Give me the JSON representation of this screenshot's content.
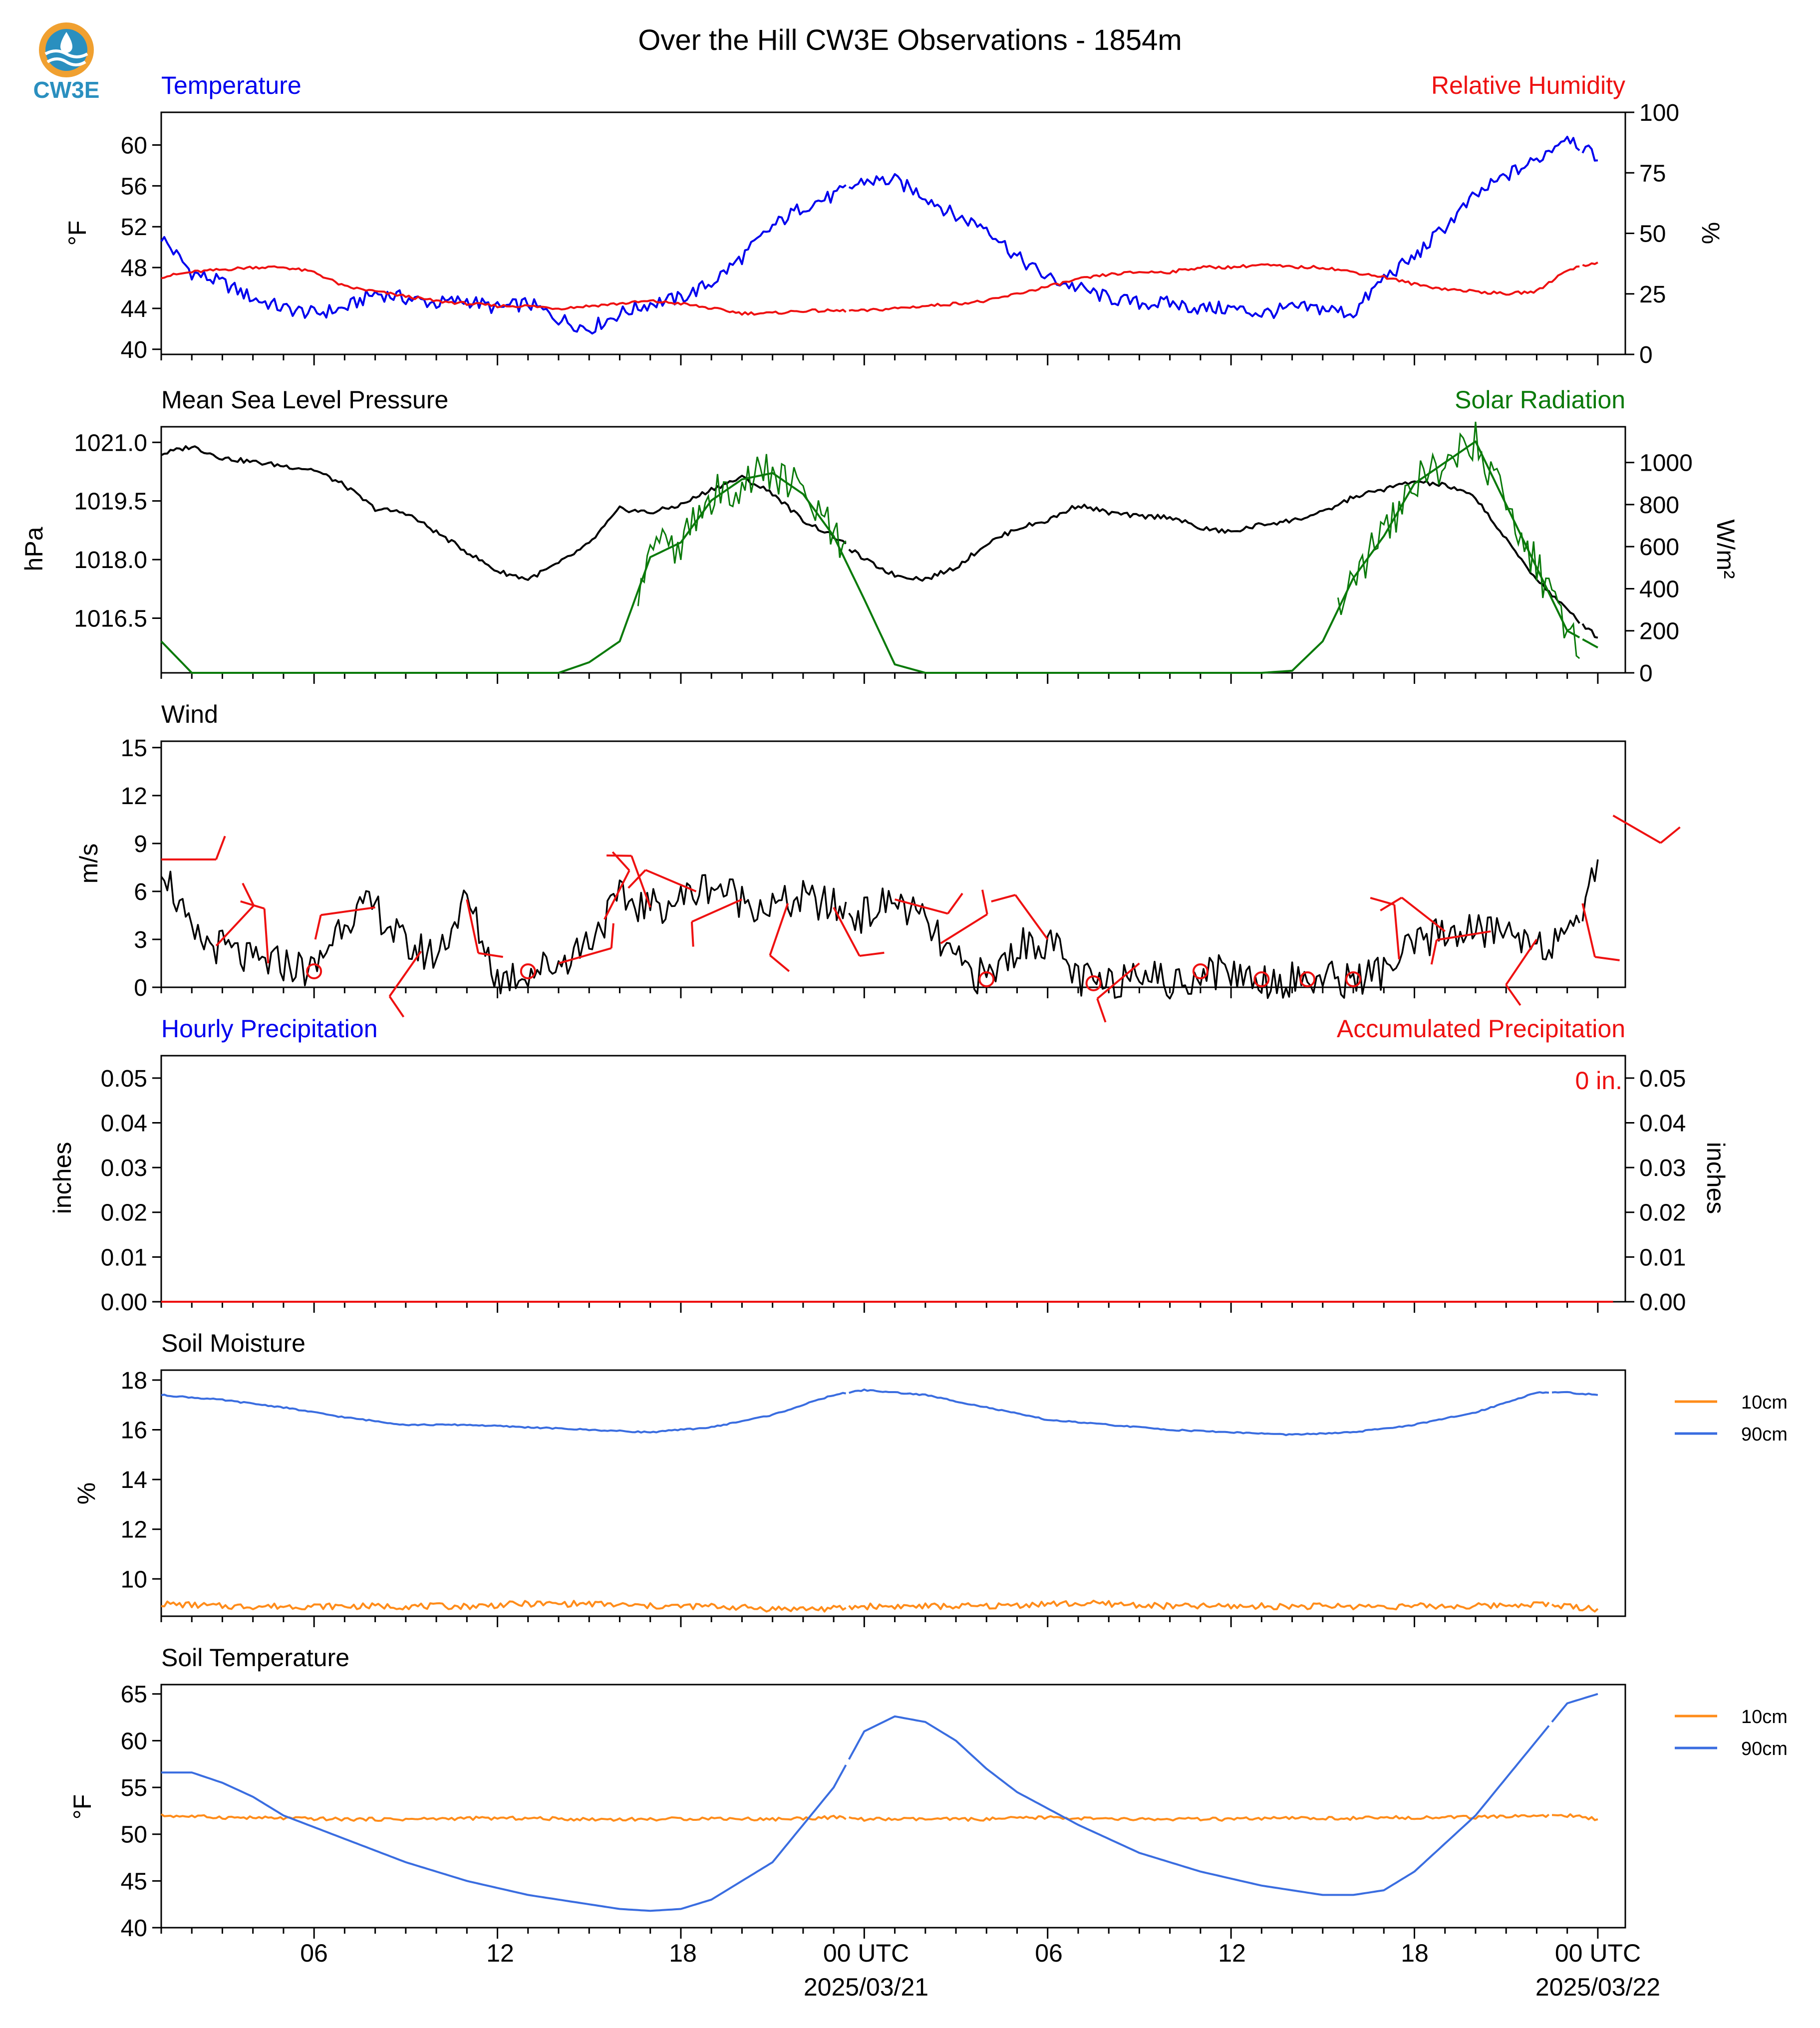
{
  "title": "Over the Hill CW3E Observations - 1854m",
  "logo": {
    "text": "CW3E"
  },
  "colors": {
    "blue": "#0000ee",
    "red": "#ee1111",
    "green": "#0a7a0a",
    "black": "#000000",
    "orange": "#ff8c1a",
    "royal": "#3a6de0",
    "logo_orange": "#f0a030",
    "logo_blue": "#2a8fbf"
  },
  "time_axis": {
    "major_ticks": [
      "06",
      "12",
      "18",
      "00 UTC",
      "06",
      "12",
      "18",
      "00 UTC"
    ],
    "dates": [
      "2025/03/21",
      "2025/03/22"
    ]
  },
  "panels": {
    "temperature": {
      "title_left": "Temperature",
      "title_right": "Relative Humidity",
      "ylabel_left": "°F",
      "ylabel_right": "%",
      "left_ticks": [
        "40",
        "44",
        "48",
        "52",
        "56",
        "60"
      ],
      "right_ticks": [
        "0",
        "25",
        "50",
        "75",
        "100"
      ]
    },
    "pressure": {
      "title_left": "Mean Sea Level Pressure",
      "title_right": "Solar Radiation",
      "ylabel_left": "hPa",
      "ylabel_right": "W/m²",
      "left_ticks": [
        "1016.5",
        "1018.0",
        "1019.5",
        "1021.0"
      ],
      "right_ticks": [
        "0",
        "200",
        "400",
        "600",
        "800",
        "1000"
      ]
    },
    "wind": {
      "title_left": "Wind",
      "ylabel_left": "m/s",
      "left_ticks": [
        "0",
        "3",
        "6",
        "9",
        "12",
        "15"
      ]
    },
    "precip": {
      "title_left": "Hourly Precipitation",
      "title_right": "Accumulated Precipitation",
      "ylabel_left": "inches",
      "ylabel_right": "inches",
      "left_ticks": [
        "0.00",
        "0.01",
        "0.02",
        "0.03",
        "0.04",
        "0.05"
      ],
      "right_ticks": [
        "0.00",
        "0.01",
        "0.02",
        "0.03",
        "0.04",
        "0.05"
      ],
      "total_label": "0 in."
    },
    "soil_moisture": {
      "title_left": "Soil Moisture",
      "ylabel_left": "%",
      "left_ticks": [
        "10",
        "12",
        "14",
        "16",
        "18"
      ],
      "legend": [
        "10cm",
        "90cm"
      ]
    },
    "soil_temperature": {
      "title_left": "Soil Temperature",
      "ylabel_left": "°F",
      "left_ticks": [
        "40",
        "45",
        "50",
        "55",
        "60",
        "65"
      ],
      "legend": [
        "10cm",
        "90cm"
      ]
    }
  },
  "chart_data": [
    {
      "type": "line",
      "name": "temperature",
      "title": "Temperature",
      "ylabel": "°F",
      "ylim": [
        39.5,
        63.2
      ],
      "x_unit": "hours from 2025-03-20 01:00 UTC",
      "series": [
        {
          "name": "Temperature",
          "color": "blue",
          "x": [
            0,
            1,
            2,
            3,
            4,
            5,
            6,
            7,
            8,
            9,
            10,
            11,
            12,
            13,
            14,
            15,
            16,
            17,
            18,
            19,
            20,
            21,
            22,
            23,
            24,
            25,
            26,
            27,
            28,
            29,
            30,
            31,
            32,
            33,
            34,
            35,
            36,
            37,
            38,
            39,
            40,
            41,
            42,
            43,
            44,
            45,
            46,
            47
          ],
          "y": [
            51,
            47.5,
            46.5,
            45,
            44,
            43.5,
            44,
            45.5,
            45,
            44.5,
            44.8,
            44,
            44.5,
            43,
            42,
            43.5,
            44.5,
            45,
            46.5,
            49,
            52,
            54,
            55,
            56.5,
            56.5,
            55,
            53,
            52,
            49,
            47,
            46,
            45,
            44.5,
            44.5,
            44,
            44,
            43.5,
            44,
            44,
            43.5,
            47,
            49,
            52,
            55,
            57,
            58.5,
            61,
            58.5
          ],
          "gaps_after": [
            22,
            46
          ]
        }
      ]
    },
    {
      "type": "line",
      "name": "relative_humidity",
      "title": "Relative Humidity",
      "ylabel": "%",
      "ylim": [
        0,
        100
      ],
      "series": [
        {
          "name": "Relative Humidity",
          "color": "red",
          "x": [
            0,
            1,
            2,
            3,
            4,
            5,
            6,
            7,
            8,
            9,
            10,
            11,
            12,
            13,
            14,
            15,
            16,
            17,
            18,
            19,
            20,
            21,
            22,
            23,
            24,
            25,
            26,
            27,
            28,
            29,
            30,
            31,
            32,
            33,
            34,
            35,
            36,
            37,
            38,
            39,
            40,
            41,
            42,
            43,
            44,
            45,
            46,
            47
          ],
          "y": [
            32,
            34,
            35,
            36,
            36,
            34,
            28,
            26,
            24,
            22,
            21,
            20,
            20,
            19,
            20,
            21,
            22,
            21,
            19,
            17,
            17,
            18,
            18,
            18,
            19,
            20,
            21,
            22,
            25,
            28,
            31,
            33,
            34,
            34,
            36,
            36,
            37,
            36,
            36,
            34,
            32,
            29,
            27,
            26,
            25,
            26,
            35,
            38
          ],
          "gaps_after": [
            22,
            46
          ]
        }
      ]
    },
    {
      "type": "line",
      "name": "pressure",
      "title": "Mean Sea Level Pressure",
      "ylabel": "hPa",
      "ylim": [
        1015.1,
        1021.4
      ],
      "series": [
        {
          "name": "Mean Sea Level Pressure",
          "color": "black",
          "x": [
            0,
            1,
            2,
            3,
            4,
            5,
            6,
            7,
            8,
            9,
            10,
            11,
            12,
            13,
            14,
            15,
            16,
            17,
            18,
            19,
            20,
            21,
            22,
            23,
            24,
            25,
            26,
            27,
            28,
            29,
            30,
            31,
            32,
            33,
            34,
            35,
            36,
            37,
            38,
            39,
            40,
            41,
            42,
            43,
            44,
            45,
            46,
            47
          ],
          "y": [
            1020.7,
            1020.9,
            1020.6,
            1020.5,
            1020.4,
            1020.3,
            1019.9,
            1019.3,
            1019.2,
            1018.7,
            1018.2,
            1017.7,
            1017.5,
            1017.9,
            1018.4,
            1019.3,
            1019.2,
            1019.4,
            1019.8,
            1020.1,
            1019.7,
            1019.0,
            1018.6,
            1018.0,
            1017.6,
            1017.5,
            1017.8,
            1018.4,
            1018.8,
            1019.0,
            1019.4,
            1019.2,
            1019.1,
            1019.1,
            1018.8,
            1018.7,
            1018.9,
            1019.0,
            1019.2,
            1019.6,
            1019.8,
            1020.0,
            1019.9,
            1019.6,
            1018.5,
            1017.5,
            1016.7,
            1016.0
          ],
          "gaps_after": [
            22,
            46
          ]
        }
      ]
    },
    {
      "type": "line",
      "name": "solar_radiation",
      "title": "Solar Radiation",
      "ylabel": "W/m²",
      "ylim": [
        0,
        1170
      ],
      "series": [
        {
          "name": "Solar Radiation",
          "color": "green",
          "x": [
            0,
            1,
            2,
            3,
            4,
            5,
            6,
            7,
            8,
            9,
            10,
            11,
            12,
            13,
            14,
            15,
            16,
            17,
            18,
            19,
            20,
            21,
            22,
            23,
            24,
            25,
            26,
            27,
            28,
            29,
            30,
            31,
            32,
            33,
            34,
            35,
            36,
            37,
            38,
            39,
            40,
            41,
            42,
            43,
            44,
            45,
            46,
            47
          ],
          "y": [
            150,
            0,
            0,
            0,
            0,
            0,
            0,
            0,
            0,
            0,
            0,
            0,
            0,
            0,
            50,
            150,
            550,
            620,
            820,
            920,
            950,
            850,
            650,
            350,
            40,
            0,
            0,
            0,
            0,
            0,
            0,
            0,
            0,
            0,
            0,
            0,
            0,
            10,
            150,
            450,
            650,
            900,
            1000,
            1100,
            800,
            500,
            200,
            120
          ],
          "gaps_after": [
            46
          ]
        }
      ]
    },
    {
      "type": "line",
      "name": "wind",
      "title": "Wind",
      "ylabel": "m/s",
      "ylim": [
        0,
        15.4
      ],
      "series": [
        {
          "name": "Wind speed",
          "color": "black",
          "x": [
            0,
            1,
            2,
            3,
            4,
            5,
            6,
            7,
            8,
            9,
            10,
            11,
            12,
            13,
            14,
            15,
            16,
            17,
            18,
            19,
            20,
            21,
            22,
            23,
            24,
            25,
            26,
            27,
            28,
            29,
            30,
            31,
            32,
            33,
            34,
            35,
            36,
            37,
            38,
            39,
            40,
            41,
            42,
            43,
            44,
            45,
            46,
            47
          ],
          "y": [
            8,
            3,
            2.5,
            1.5,
            1.5,
            1,
            4.5,
            5,
            2.5,
            2,
            5.5,
            0.5,
            1,
            1.5,
            3,
            5.5,
            5,
            5.5,
            6.5,
            5.5,
            5,
            5.5,
            5,
            4.5,
            5.5,
            4,
            1.5,
            0.5,
            2.5,
            3,
            0.5,
            0,
            1.5,
            0,
            1,
            1,
            0.5,
            0.5,
            0.5,
            0.5,
            1,
            2.5,
            3.5,
            3.5,
            3.5,
            3,
            2.5,
            8
          ],
          "gaps_after": [
            22,
            46
          ]
        }
      ],
      "barb_hours": [
        0,
        1.8,
        3.5,
        5,
        7,
        8.5,
        10,
        12,
        13,
        14.5,
        16,
        17.5,
        19,
        20.5,
        22,
        24,
        25.5,
        27,
        29,
        30.5,
        32,
        34,
        36,
        37.5,
        39,
        40.5,
        42,
        43.5,
        45,
        46.5,
        47.5
      ]
    },
    {
      "type": "line",
      "name": "precipitation",
      "title": "Hourly Precipitation",
      "ylabel": "inches",
      "ylim": [
        0,
        0.055
      ],
      "series": [
        {
          "name": "Hourly Precipitation",
          "color": "blue",
          "x": [
            0,
            47.5
          ],
          "y": [
            0,
            0
          ]
        },
        {
          "name": "Accumulated Precipitation",
          "color": "red",
          "x": [
            0,
            47.5
          ],
          "y": [
            0,
            0
          ]
        }
      ]
    },
    {
      "type": "line",
      "name": "soil_moisture",
      "title": "Soil Moisture",
      "ylabel": "%",
      "ylim": [
        8.5,
        18.4
      ],
      "series": [
        {
          "name": "10cm",
          "color": "orange",
          "x": [
            0,
            2,
            4,
            6,
            8,
            10,
            12,
            14,
            16,
            18,
            20,
            22,
            23,
            25,
            27,
            29,
            31,
            33,
            35,
            37,
            39,
            41,
            43,
            45,
            46,
            47
          ],
          "y": [
            9.0,
            8.9,
            8.9,
            8.9,
            8.9,
            8.9,
            9.0,
            9.0,
            8.9,
            8.9,
            8.8,
            8.8,
            8.9,
            8.9,
            8.9,
            9.0,
            9.0,
            8.9,
            8.9,
            8.9,
            8.9,
            8.9,
            8.9,
            9.0,
            8.9,
            8.8
          ],
          "gaps_after": [
            22,
            45
          ]
        },
        {
          "name": "90cm",
          "color": "royal",
          "x": [
            0,
            2,
            4,
            6,
            8,
            10,
            12,
            14,
            16,
            18,
            20,
            22,
            23,
            25,
            27,
            29,
            31,
            33,
            35,
            37,
            39,
            41,
            43,
            45,
            46,
            47
          ],
          "y": [
            17.4,
            17.2,
            16.9,
            16.5,
            16.2,
            16.2,
            16.1,
            16.0,
            15.9,
            16.1,
            16.6,
            17.4,
            17.6,
            17.4,
            16.9,
            16.4,
            16.2,
            16.0,
            15.9,
            15.8,
            15.9,
            16.2,
            16.7,
            17.5,
            17.5,
            17.4
          ],
          "gaps_after": [
            22,
            45
          ]
        }
      ]
    },
    {
      "type": "line",
      "name": "soil_temperature",
      "title": "Soil Temperature",
      "ylabel": "°F",
      "ylim": [
        40,
        66
      ],
      "series": [
        {
          "name": "10cm",
          "color": "orange",
          "x": [
            0,
            2,
            4,
            6,
            8,
            10,
            12,
            14,
            16,
            18,
            20,
            22,
            23,
            25,
            27,
            29,
            31,
            33,
            35,
            37,
            39,
            41,
            43,
            45,
            46,
            47
          ],
          "y": [
            52,
            51.8,
            51.7,
            51.6,
            51.6,
            51.7,
            51.7,
            51.6,
            51.6,
            51.7,
            51.6,
            51.8,
            51.6,
            51.6,
            51.6,
            51.8,
            51.6,
            51.6,
            51.6,
            51.7,
            51.7,
            51.8,
            51.8,
            52,
            52,
            51.6
          ],
          "gaps_after": [
            22,
            45
          ]
        },
        {
          "name": "90cm",
          "color": "royal",
          "x": [
            0,
            1,
            2,
            3,
            4,
            6,
            8,
            10,
            12,
            14,
            15,
            16,
            17,
            18,
            19,
            20,
            21,
            22,
            23,
            24,
            25,
            26,
            27,
            28,
            30,
            32,
            34,
            36,
            38,
            39,
            40,
            41,
            42,
            43,
            44,
            45,
            46,
            47
          ],
          "y": [
            56.6,
            56.6,
            55.5,
            54,
            52,
            49.5,
            47,
            45,
            43.5,
            42.5,
            42,
            41.8,
            42,
            43,
            45,
            47,
            51,
            55,
            61,
            62.6,
            62,
            60,
            57,
            54.5,
            51,
            48,
            46,
            44.5,
            43.5,
            43.5,
            44,
            46,
            49,
            52,
            56,
            60,
            64,
            65
          ],
          "gaps_after": [
            22,
            45
          ]
        }
      ]
    }
  ]
}
